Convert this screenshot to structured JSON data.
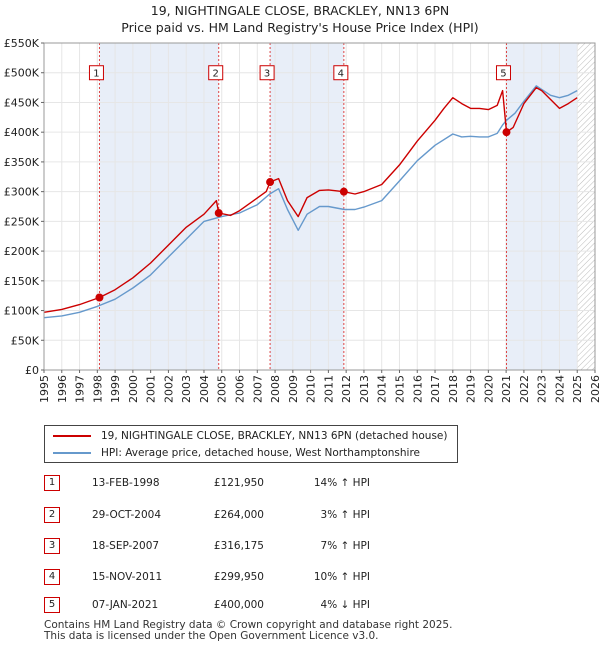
{
  "chart_data": {
    "type": "line",
    "title": "19, NIGHTINGALE CLOSE, BRACKLEY, NN13 6PN",
    "subtitle": "Price paid vs. HM Land Registry's House Price Index (HPI)",
    "xlabel": "",
    "ylabel": "",
    "xlim": [
      1995,
      2026
    ],
    "ylim": [
      0,
      550000
    ],
    "y_ticks": [
      0,
      50000,
      100000,
      150000,
      200000,
      250000,
      300000,
      350000,
      400000,
      450000,
      500000,
      550000
    ],
    "y_tick_labels": [
      "£0",
      "£50K",
      "£100K",
      "£150K",
      "£200K",
      "£250K",
      "£300K",
      "£350K",
      "£400K",
      "£450K",
      "£500K",
      "£550K"
    ],
    "x_ticks": [
      1995,
      1996,
      1997,
      1998,
      1999,
      2000,
      2001,
      2002,
      2003,
      2004,
      2005,
      2006,
      2007,
      2008,
      2009,
      2010,
      2011,
      2012,
      2013,
      2014,
      2015,
      2016,
      2017,
      2018,
      2019,
      2020,
      2021,
      2022,
      2023,
      2024,
      2025,
      2026
    ],
    "x_tick_labels": [
      "1995",
      "1996",
      "1997",
      "1998",
      "1999",
      "2000",
      "2001",
      "2002",
      "2003",
      "2004",
      "2005",
      "2006",
      "2007",
      "2008",
      "2009",
      "2010",
      "2011",
      "2012",
      "2013",
      "2014",
      "2015",
      "2016",
      "2017",
      "2018",
      "2019",
      "2020",
      "2021",
      "2022",
      "2023",
      "2024",
      "2025",
      "2026"
    ],
    "grid": true,
    "shaded_periods": [
      [
        1998.12,
        2004.83
      ],
      [
        2007.72,
        2011.87
      ],
      [
        2021.02,
        2025.0
      ]
    ],
    "future_hatch_from": 2025.0,
    "series": [
      {
        "name": "19, NIGHTINGALE CLOSE, BRACKLEY, NN13 6PN (detached house)",
        "color": "#cc0000",
        "x": [
          1995.0,
          1996.0,
          1997.0,
          1998.12,
          1999.0,
          2000.0,
          2001.0,
          2002.0,
          2003.0,
          2004.0,
          2004.7,
          2004.83,
          2005.5,
          2006.0,
          2006.8,
          2007.5,
          2007.72,
          2008.2,
          2008.7,
          2009.3,
          2009.8,
          2010.5,
          2011.0,
          2011.87,
          2012.5,
          2013.0,
          2014.0,
          2015.0,
          2016.0,
          2017.0,
          2017.5,
          2018.0,
          2018.5,
          2019.0,
          2019.5,
          2020.0,
          2020.5,
          2020.8,
          2021.02,
          2021.4,
          2022.0,
          2022.7,
          2023.0,
          2023.5,
          2024.0,
          2024.5,
          2025.0
        ],
        "values": [
          97000,
          102000,
          110000,
          121950,
          135000,
          155000,
          180000,
          210000,
          240000,
          262000,
          285000,
          264000,
          260000,
          268000,
          285000,
          300000,
          316175,
          322000,
          285000,
          258000,
          290000,
          302000,
          303000,
          299950,
          296000,
          300000,
          312000,
          345000,
          385000,
          420000,
          440000,
          458000,
          448000,
          440000,
          440000,
          438000,
          445000,
          470000,
          400000,
          408000,
          448000,
          475000,
          470000,
          455000,
          440000,
          448000,
          458000
        ]
      },
      {
        "name": "HPI: Average price, detached house, West Northamptonshire",
        "color": "#6699cc",
        "x": [
          1995.0,
          1996.0,
          1997.0,
          1998.0,
          1999.0,
          2000.0,
          2001.0,
          2002.0,
          2003.0,
          2004.0,
          2005.0,
          2006.0,
          2007.0,
          2007.7,
          2008.2,
          2008.7,
          2009.3,
          2009.8,
          2010.5,
          2011.0,
          2011.9,
          2012.5,
          2013.0,
          2014.0,
          2015.0,
          2016.0,
          2017.0,
          2018.0,
          2018.5,
          2019.0,
          2019.5,
          2020.0,
          2020.5,
          2020.8,
          2021.02,
          2021.5,
          2022.0,
          2022.7,
          2023.0,
          2023.5,
          2024.0,
          2024.5,
          2025.0
        ],
        "values": [
          88000,
          91000,
          97000,
          107000,
          119000,
          138000,
          160000,
          190000,
          220000,
          250000,
          258000,
          264000,
          278000,
          296000,
          305000,
          270000,
          235000,
          262000,
          275000,
          275000,
          270000,
          270000,
          274000,
          285000,
          318000,
          352000,
          378000,
          397000,
          392000,
          393000,
          392000,
          392000,
          398000,
          412000,
          420000,
          432000,
          452000,
          478000,
          472000,
          462000,
          458000,
          462000,
          470000
        ]
      }
    ],
    "sales": [
      {
        "label": "1",
        "x": 1998.12,
        "value": 121950,
        "box_value": 500000
      },
      {
        "label": "2",
        "x": 2004.83,
        "value": 264000,
        "box_value": 500000
      },
      {
        "label": "3",
        "x": 2007.72,
        "value": 316175,
        "box_value": 500000
      },
      {
        "label": "4",
        "x": 2011.87,
        "value": 299950,
        "box_value": 500000
      },
      {
        "label": "5",
        "x": 2021.02,
        "value": 400000,
        "box_value": 500000
      }
    ]
  },
  "legend": {
    "property_label": "19, NIGHTINGALE CLOSE, BRACKLEY, NN13 6PN (detached house)",
    "hpi_label": "HPI: Average price, detached house, West Northamptonshire"
  },
  "sales_table": [
    {
      "num": "1",
      "date": "13-FEB-1998",
      "price": "£121,950",
      "hpi": "14% ↑ HPI"
    },
    {
      "num": "2",
      "date": "29-OCT-2004",
      "price": "£264,000",
      "hpi": "3% ↑ HPI"
    },
    {
      "num": "3",
      "date": "18-SEP-2007",
      "price": "£316,175",
      "hpi": "7% ↑ HPI"
    },
    {
      "num": "4",
      "date": "15-NOV-2011",
      "price": "£299,950",
      "hpi": "10% ↑ HPI"
    },
    {
      "num": "5",
      "date": "07-JAN-2021",
      "price": "£400,000",
      "hpi": "4% ↓ HPI"
    }
  ],
  "footer": {
    "line1": "Contains HM Land Registry data © Crown copyright and database right 2025.",
    "line2": "This data is licensed under the Open Government Licence v3.0."
  },
  "colors": {
    "property": "#cc0000",
    "hpi": "#6699cc",
    "shade": "#e8eef8",
    "grid": "#e6e6e6"
  }
}
